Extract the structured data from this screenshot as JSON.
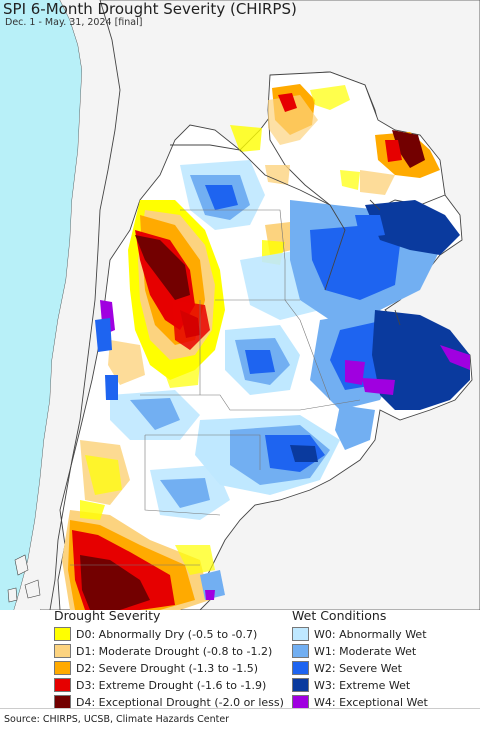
{
  "title": "SPI 6-Month Drought Severity (CHIRPS)",
  "subtitle": "Dec. 1 - May. 31, 2024 [final]",
  "colors": {
    "ocean": "#b8f0f8",
    "land_outside": "#f4f4f4",
    "no_data": "#ffffff",
    "border": "#555555"
  },
  "legend": {
    "drought": {
      "heading": "Drought Severity",
      "items": [
        {
          "label": "D0: Abnormally Dry (-0.5 to -0.7)",
          "color": "#ffff00"
        },
        {
          "label": "D1: Moderate Drought (-0.8 to -1.2)",
          "color": "#fcd37f"
        },
        {
          "label": "D2: Severe Drought (-1.3 to -1.5)",
          "color": "#ffaa00"
        },
        {
          "label": "D3: Extreme Drought (-1.6 to -1.9)",
          "color": "#e60000"
        },
        {
          "label": "D4: Exceptional Drought (-2.0 or less)",
          "color": "#730000"
        }
      ]
    },
    "wet": {
      "heading": "Wet Conditions",
      "items": [
        {
          "label": "W0: Abnormally Wet",
          "color": "#bfe8ff"
        },
        {
          "label": "W1: Moderate Wet",
          "color": "#72aff2"
        },
        {
          "label": "W2: Severe Wet",
          "color": "#1e64f0"
        },
        {
          "label": "W3: Extreme Wet",
          "color": "#0a3a9e"
        },
        {
          "label": "W4: Exceptional Wet",
          "color": "#a000e0"
        }
      ]
    }
  },
  "source": "Source: CHIRPS, UCSB, Climate Hazards Center"
}
